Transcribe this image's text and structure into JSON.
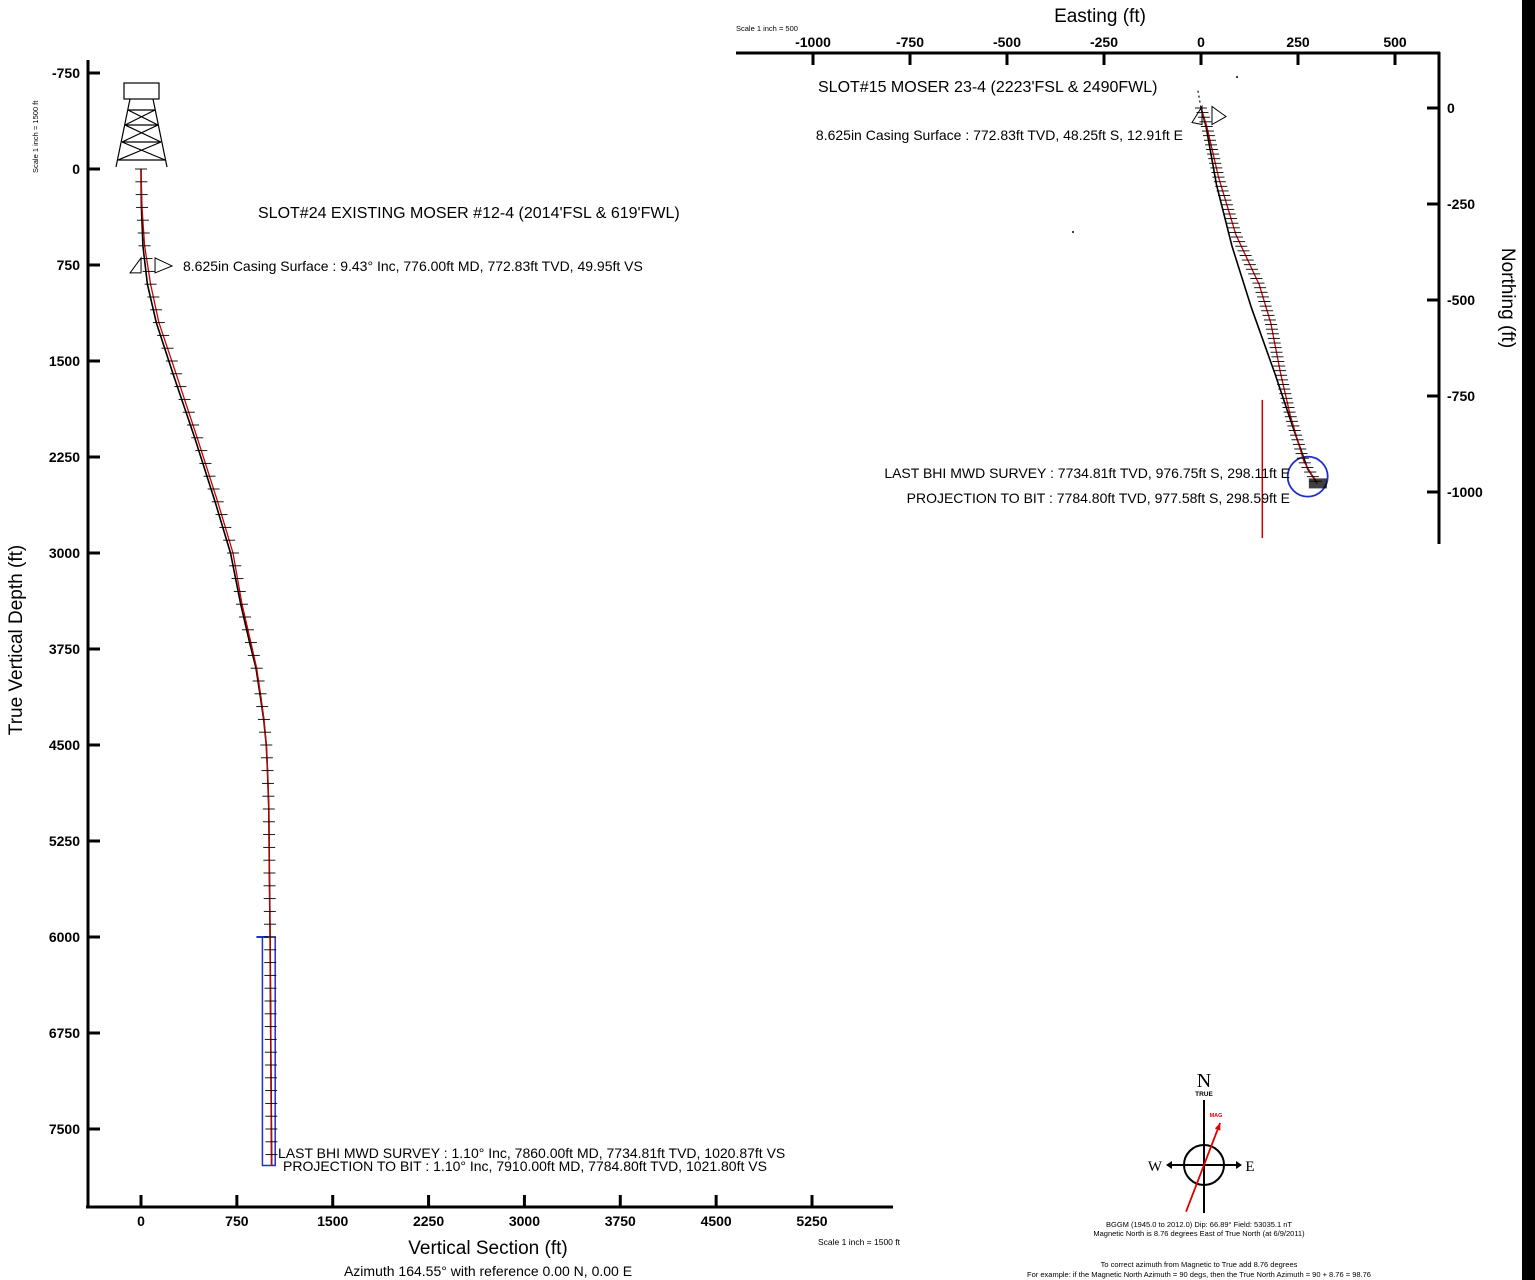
{
  "chart_data": [
    {
      "type": "line",
      "xlabel": "Vertical Section (ft)",
      "ylabel": "True Vertical Depth (ft)",
      "xlim": [
        -400,
        5900
      ],
      "ylim": [
        -750,
        8000
      ],
      "x_ticks": [
        0,
        750,
        1500,
        2250,
        3000,
        3750,
        4500,
        5250
      ],
      "y_ticks": [
        -750,
        0,
        750,
        1500,
        2250,
        3000,
        3750,
        4500,
        5250,
        6000,
        6750,
        7500
      ],
      "scale_note": "Scale 1 inch = 1500 ft",
      "scale_note_bottom": "Scale 1 inch = 1500 ft",
      "subtitle": "Azimuth 164.55° with reference 0.00 N, 0.00 E",
      "well_label": "SLOT#24 EXISTING MOSER #12-4 (2014'FSL & 619'FWL)",
      "annotations": {
        "casing": "8.625in Casing Surface : 9.43° Inc, 776.00ft MD, 772.83ft TVD, 49.95ft VS",
        "last_survey": "LAST BHI MWD SURVEY : 1.10° Inc, 7860.00ft MD, 7734.81ft TVD, 1020.87ft VS",
        "projection": "PROJECTION TO BIT : 1.10° Inc, 7910.00ft MD, 7784.80ft TVD, 1021.80ft VS"
      },
      "series": [
        {
          "color": "#000000",
          "x": [
            0,
            3,
            15,
            50,
            120,
            250,
            420,
            580,
            700,
            780,
            850,
            900,
            930,
            960,
            980,
            990,
            1000,
            1005,
            1010,
            1015,
            1020,
            1022
          ],
          "y": [
            0,
            300,
            600,
            900,
            1200,
            1600,
            2100,
            2600,
            3000,
            3400,
            3700,
            3900,
            4100,
            4300,
            4500,
            4700,
            5000,
            5500,
            6000,
            6750,
            7500,
            7785
          ]
        },
        {
          "color": "#cc0000",
          "x": [
            0,
            8,
            28,
            75,
            140,
            275,
            440,
            600,
            720,
            790,
            860,
            905,
            935,
            962,
            980,
            990,
            1000,
            1005,
            1010,
            1015,
            1020,
            1022
          ],
          "y": [
            0,
            300,
            600,
            900,
            1200,
            1600,
            2100,
            2600,
            3000,
            3400,
            3700,
            3900,
            4100,
            4300,
            4500,
            4700,
            5000,
            5500,
            6000,
            6750,
            7500,
            7785
          ]
        }
      ],
      "target_box": {
        "x": [
          950,
          1050
        ],
        "y": [
          6000,
          7785
        ]
      }
    },
    {
      "type": "line",
      "xlabel": "Easting (ft)",
      "ylabel": "Northing (ft)",
      "xlim": [
        -1200,
        620
      ],
      "ylim": [
        -1110,
        130
      ],
      "x_ticks": [
        -1000,
        -750,
        -500,
        -250,
        0,
        250,
        500
      ],
      "y_ticks": [
        0,
        -250,
        -500,
        -750,
        -1000
      ],
      "scale_note": "Scale 1 inch = 500",
      "well_label": "SLOT#15 MOSER 23-4 (2223'FSL & 2490FWL)",
      "annotations": {
        "casing": "8.625in Casing Surface : 772.83ft TVD, 48.25ft S, 12.91ft E",
        "last_survey": "LAST BHI MWD SURVEY : 7734.81ft TVD, 976.75ft S, 298.11ft E",
        "projection": "PROJECTION TO BIT : 7784.80ft TVD, 977.58ft S, 298.59ft E"
      },
      "series": [
        {
          "color": "#000000",
          "x": [
            0,
            13,
            40,
            80,
            130,
            190,
            240,
            275,
            295,
            298.6
          ],
          "y": [
            0,
            -48,
            -200,
            -360,
            -520,
            -690,
            -840,
            -940,
            -970,
            -977.6
          ]
        },
        {
          "color": "#cc0000",
          "x": [
            0,
            15,
            45,
            90,
            150,
            180,
            205,
            230,
            265,
            298.6
          ],
          "y": [
            0,
            -48,
            -180,
            -330,
            -460,
            -560,
            -690,
            -800,
            -920,
            -977.6
          ]
        }
      ],
      "target_circle": {
        "x": 275,
        "y": -960
      },
      "target_line_x": 158,
      "target_line_y": [
        -760,
        -1120
      ]
    }
  ],
  "compass": {
    "north": "N",
    "north_sub": "TRUE",
    "mag": "MAG",
    "west": "W",
    "east": "E",
    "mag_declination_deg": 8.76,
    "model_line": "BGGM (1945.0 to 2012.0) Dip: 66.89°  Field: 53035.1 nT",
    "mag_line": "Magnetic North is 8.76 degrees East of True North (at 6/9/2011)",
    "note1": "To correct azimuth from Magnetic to True add 8.76 degrees",
    "note2": "For example: if the Magnetic North Azimuth = 90 degs, then the True North Azimuth = 90 + 8.76 = 98.76"
  }
}
